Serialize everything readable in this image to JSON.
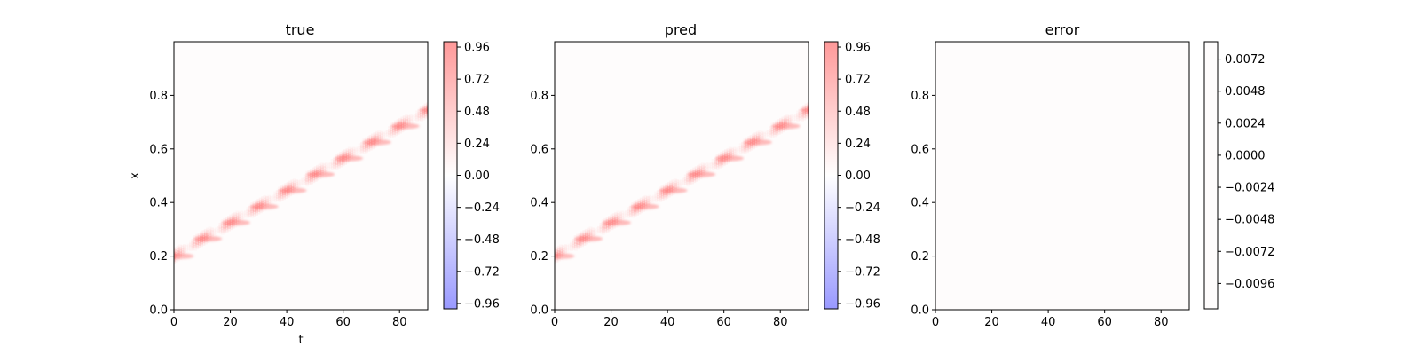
{
  "chart_data": [
    {
      "type": "heatmap",
      "title": "true",
      "xlabel": "t",
      "ylabel": "x",
      "xlim": [
        0,
        90
      ],
      "ylim": [
        0,
        1
      ],
      "x_ticks": [
        "0",
        "20",
        "40",
        "60",
        "80"
      ],
      "y_ticks": [
        "0.0",
        "0.2",
        "0.4",
        "0.6",
        "0.8"
      ],
      "colorbar": {
        "range": [
          -1.0,
          1.0
        ],
        "ticks": [
          -0.96,
          -0.72,
          -0.48,
          -0.24,
          0.0,
          0.24,
          0.48,
          0.72,
          0.96
        ],
        "tick_labels": [
          "−0.96",
          "−0.72",
          "−0.48",
          "−0.24",
          "0.00",
          "0.24",
          "0.48",
          "0.72",
          "0.96"
        ],
        "low_color": "#9999ff",
        "mid_color": "#ffffff",
        "high_color": "#ff9999"
      },
      "field": {
        "description": "traveling pulse along a diagonal band",
        "pulse_centers": [
          {
            "t": 0,
            "x": 0.2
          },
          {
            "t": 10,
            "x": 0.265
          },
          {
            "t": 20,
            "x": 0.325
          },
          {
            "t": 30,
            "x": 0.385
          },
          {
            "t": 40,
            "x": 0.445
          },
          {
            "t": 50,
            "x": 0.505
          },
          {
            "t": 60,
            "x": 0.565
          },
          {
            "t": 70,
            "x": 0.625
          },
          {
            "t": 80,
            "x": 0.685
          },
          {
            "t": 90,
            "x": 0.745
          }
        ],
        "peak_value": 0.96
      }
    },
    {
      "type": "heatmap",
      "title": "pred",
      "xlabel": "",
      "ylabel": "",
      "xlim": [
        0,
        90
      ],
      "ylim": [
        0,
        1
      ],
      "x_ticks": [
        "0",
        "20",
        "40",
        "60",
        "80"
      ],
      "y_ticks": [
        "0.0",
        "0.2",
        "0.4",
        "0.6",
        "0.8"
      ],
      "colorbar": {
        "range": [
          -1.0,
          1.0
        ],
        "ticks": [
          -0.96,
          -0.72,
          -0.48,
          -0.24,
          0.0,
          0.24,
          0.48,
          0.72,
          0.96
        ],
        "tick_labels": [
          "−0.96",
          "−0.72",
          "−0.48",
          "−0.24",
          "0.00",
          "0.24",
          "0.48",
          "0.72",
          "0.96"
        ],
        "low_color": "#9999ff",
        "mid_color": "#ffffff",
        "high_color": "#ff9999"
      },
      "field": {
        "description": "traveling pulse along a diagonal band",
        "pulse_centers": [
          {
            "t": 0,
            "x": 0.2
          },
          {
            "t": 10,
            "x": 0.265
          },
          {
            "t": 20,
            "x": 0.325
          },
          {
            "t": 30,
            "x": 0.385
          },
          {
            "t": 40,
            "x": 0.445
          },
          {
            "t": 50,
            "x": 0.505
          },
          {
            "t": 60,
            "x": 0.565
          },
          {
            "t": 70,
            "x": 0.625
          },
          {
            "t": 80,
            "x": 0.685
          },
          {
            "t": 90,
            "x": 0.745
          }
        ],
        "peak_value": 0.96
      }
    },
    {
      "type": "heatmap",
      "title": "error",
      "xlabel": "",
      "ylabel": "",
      "xlim": [
        0,
        90
      ],
      "ylim": [
        0,
        1
      ],
      "x_ticks": [
        "0",
        "20",
        "40",
        "60",
        "80"
      ],
      "y_ticks": [
        "0.0",
        "0.2",
        "0.4",
        "0.6",
        "0.8"
      ],
      "colorbar": {
        "range": [
          -0.0115,
          0.0085
        ],
        "ticks": [
          -0.0096,
          -0.0072,
          -0.0048,
          -0.0024,
          0.0,
          0.0024,
          0.0048,
          0.0072
        ],
        "tick_labels": [
          "−0.0096",
          "−0.0072",
          "−0.0048",
          "−0.0024",
          "0.0000",
          "0.0024",
          "0.0048",
          "0.0072"
        ],
        "color": "#fefcfc"
      },
      "field": {
        "description": "near-zero error everywhere",
        "value": 0.0
      }
    }
  ]
}
